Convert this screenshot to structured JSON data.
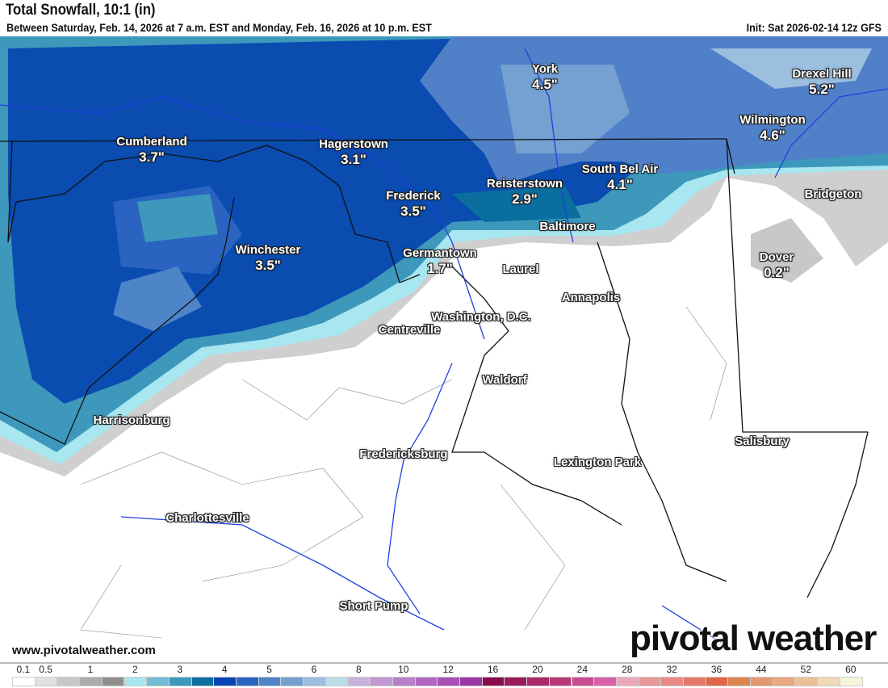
{
  "header": {
    "title": "Total Snowfall, 10:1 (in)",
    "subtitle": "Between Saturday, Feb. 14, 2026 at 7 a.m. EST and Monday, Feb. 16, 2026 at 10 p.m. EST",
    "init": "Init: Sat 2026-02-14 12z GFS"
  },
  "cities": [
    {
      "name": "Cumberland",
      "value": "3.7\""
    },
    {
      "name": "Hagerstown",
      "value": "3.1\""
    },
    {
      "name": "Frederick",
      "value": "3.5\""
    },
    {
      "name": "Reisterstown",
      "value": "2.9\""
    },
    {
      "name": "South Bel Air",
      "value": "4.1\""
    },
    {
      "name": "York",
      "value": "4.5\""
    },
    {
      "name": "Drexel Hill",
      "value": "5.2\""
    },
    {
      "name": "Wilmington",
      "value": "4.6\""
    },
    {
      "name": "Bridgeton",
      "value": ""
    },
    {
      "name": "Dover",
      "value": "0.2\""
    },
    {
      "name": "Baltimore",
      "value": ""
    },
    {
      "name": "Germantown",
      "value": "1.7\""
    },
    {
      "name": "Laurel",
      "value": ""
    },
    {
      "name": "Winchester",
      "value": "3.5\""
    },
    {
      "name": "Annapolis",
      "value": ""
    },
    {
      "name": "Washington, D.C.",
      "value": ""
    },
    {
      "name": "Centreville",
      "value": ""
    },
    {
      "name": "Waldorf",
      "value": ""
    },
    {
      "name": "Harrisonburg",
      "value": ""
    },
    {
      "name": "Fredericksburg",
      "value": ""
    },
    {
      "name": "Lexington Park",
      "value": ""
    },
    {
      "name": "Salisbury",
      "value": ""
    },
    {
      "name": "Charlottesville",
      "value": ""
    },
    {
      "name": "Short Pump",
      "value": ""
    }
  ],
  "footer": {
    "site": "www.pivotalweather.com",
    "logo": "pivotal weather"
  },
  "legend": {
    "ticks": [
      "0.1",
      "0.5",
      "1",
      "2",
      "3",
      "4",
      "5",
      "6",
      "8",
      "10",
      "12",
      "16",
      "20",
      "24",
      "28",
      "32",
      "36",
      "44",
      "52",
      "60"
    ],
    "colors": [
      "#ffffff",
      "#e0e0e0",
      "#c8c8c8",
      "#acacac",
      "#8f8f8f",
      "#a8e6f0",
      "#74bcd6",
      "#3d98bc",
      "#0a6e9e",
      "#0644b4",
      "#2a64c0",
      "#4e84c8",
      "#74a0d2",
      "#9cbedf",
      "#bcdce8",
      "#c8b0dc",
      "#c098d2",
      "#b880c8",
      "#b068c0",
      "#a850b4",
      "#9c38a8",
      "#880c4c",
      "#981c5c",
      "#a82868",
      "#b83878",
      "#c84c90",
      "#d860a8",
      "#eca8b8",
      "#e89898",
      "#e88888",
      "#e47868",
      "#e06848",
      "#dc8450",
      "#e49870",
      "#e8a880",
      "#ecc098",
      "#f0d8b8",
      "#f8f4dc"
    ]
  }
}
